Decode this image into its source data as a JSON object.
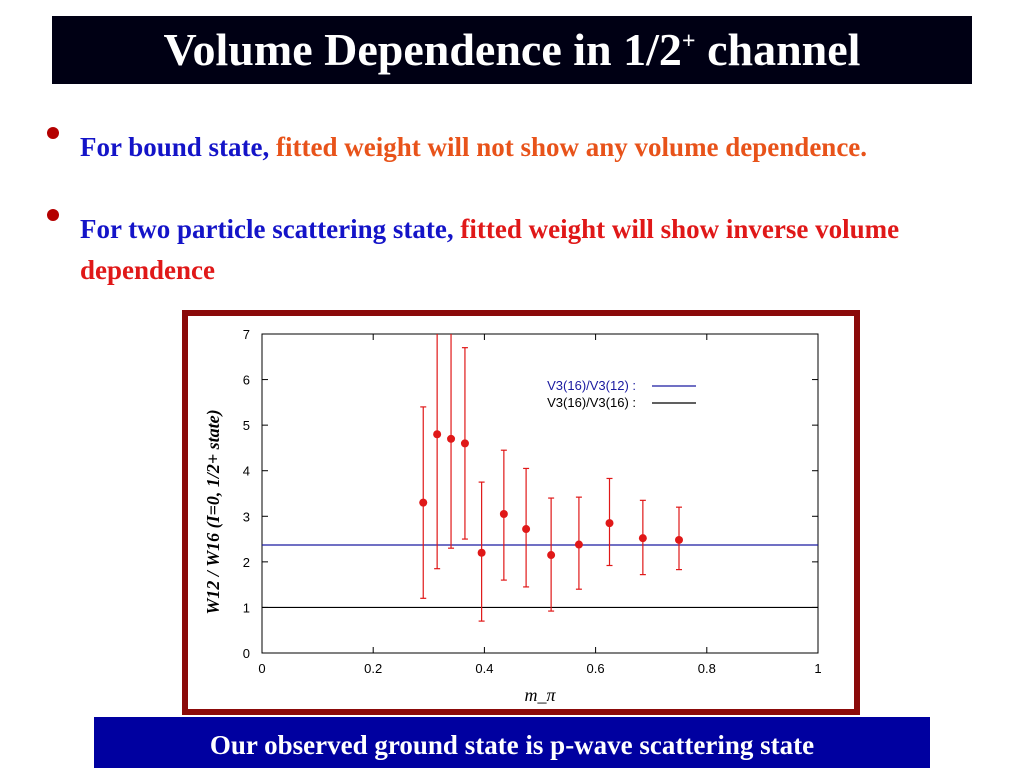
{
  "title": {
    "main": "Volume Dependence in 1/2",
    "sup": "+",
    "tail": " channel"
  },
  "bullets": [
    {
      "lead": "For bound state, ",
      "rest": "fitted weight will not show any volume dependence."
    },
    {
      "lead": "For two particle scattering state, ",
      "rest": "fitted weight will show inverse volume dependence"
    }
  ],
  "footer": "Our observed ground state is p-wave scattering state",
  "colors": {
    "title_bg": "#000014",
    "footer_bg": "#0000a0",
    "frame": "#8b0a0a",
    "data_points": "#e01818",
    "v12_line": "#1a1aa0",
    "v16_line": "#000000"
  },
  "chart_data": {
    "type": "scatter",
    "xlabel": "m_π",
    "ylabel": "W12 / W16 (I=0, 1/2+ state)",
    "xlim": [
      0,
      1
    ],
    "ylim": [
      0,
      7
    ],
    "xticks": [
      "0",
      "0.2",
      "0.4",
      "0.6",
      "0.8",
      "1"
    ],
    "yticks": [
      "0",
      "1",
      "2",
      "3",
      "4",
      "5",
      "6",
      "7"
    ],
    "legend_position": "top-right",
    "series": [
      {
        "points": [
          {
            "x": 0.29,
            "y": 3.3,
            "lo": 1.2,
            "hi": 5.4
          },
          {
            "x": 0.315,
            "y": 4.8,
            "lo": 1.85,
            "hi": 7.0
          },
          {
            "x": 0.34,
            "y": 4.7,
            "lo": 2.3,
            "hi": 7.0
          },
          {
            "x": 0.365,
            "y": 4.6,
            "lo": 2.5,
            "hi": 6.7
          },
          {
            "x": 0.395,
            "y": 2.2,
            "lo": 0.7,
            "hi": 3.75
          },
          {
            "x": 0.435,
            "y": 3.05,
            "lo": 1.6,
            "hi": 4.45
          },
          {
            "x": 0.475,
            "y": 2.72,
            "lo": 1.45,
            "hi": 4.05
          },
          {
            "x": 0.52,
            "y": 2.15,
            "lo": 0.92,
            "hi": 3.4
          },
          {
            "x": 0.57,
            "y": 2.38,
            "lo": 1.4,
            "hi": 3.42
          },
          {
            "x": 0.625,
            "y": 2.85,
            "lo": 1.92,
            "hi": 3.83
          },
          {
            "x": 0.685,
            "y": 2.52,
            "lo": 1.72,
            "hi": 3.35
          },
          {
            "x": 0.75,
            "y": 2.48,
            "lo": 1.83,
            "hi": 3.2
          }
        ]
      },
      {
        "name": "V3(16)/V3(12) :",
        "type": "hline",
        "value": 2.37
      },
      {
        "name": "V3(16)/V3(16) :",
        "type": "hline",
        "value": 1.0
      }
    ]
  }
}
